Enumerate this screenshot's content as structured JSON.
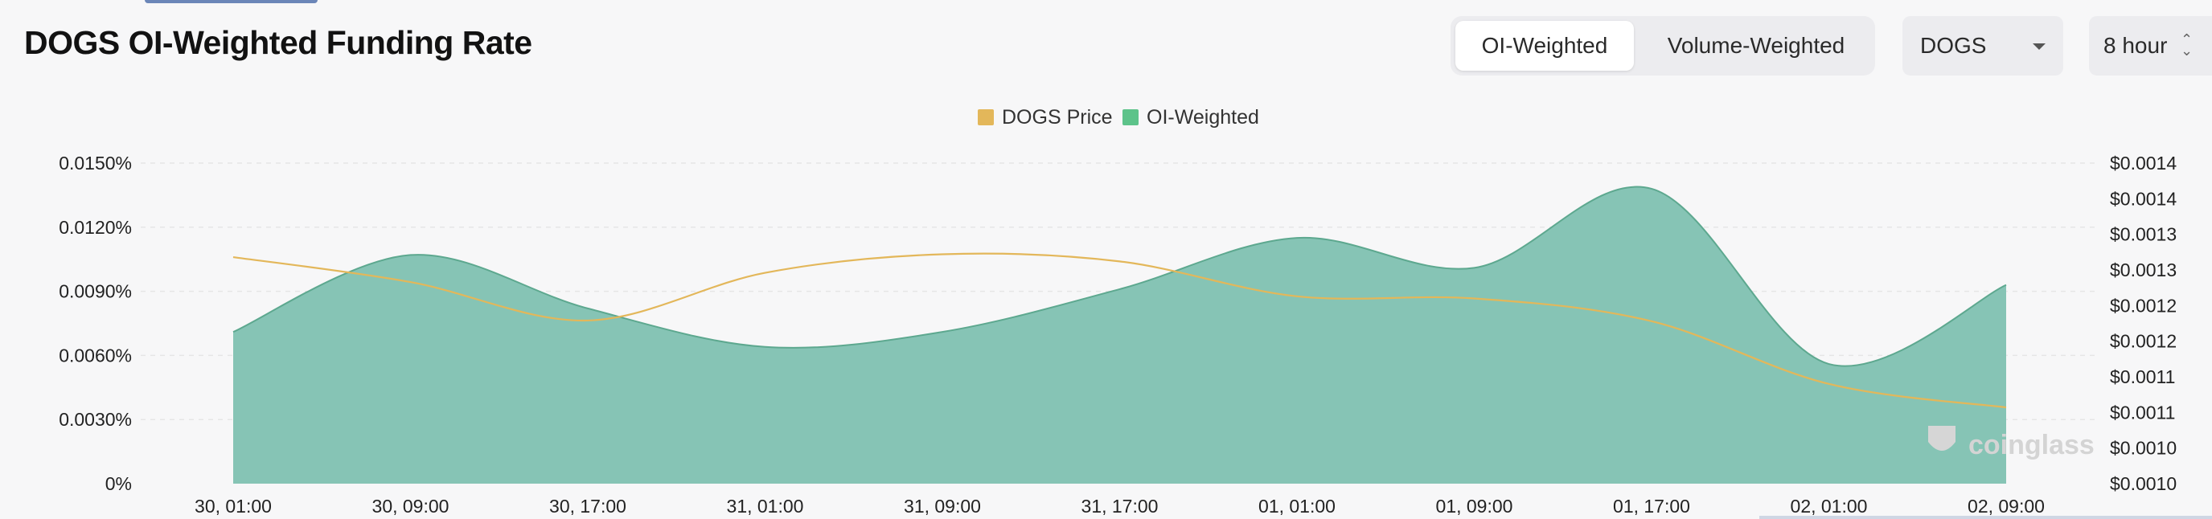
{
  "page": {
    "title": "DOGS OI-Weighted Funding Rate"
  },
  "controls": {
    "toggle": [
      {
        "label": "OI-Weighted",
        "active": true
      },
      {
        "label": "Volume-Weighted",
        "active": false
      }
    ],
    "symbol_select": {
      "value": "DOGS",
      "icon": "chevron-down-icon"
    },
    "interval_select": {
      "value": "8 hour",
      "icon": "up-down-arrows-icon"
    }
  },
  "watermark": "coinglass",
  "colors": {
    "price": "#e3b75a",
    "oi_legend": "#5dc38a",
    "oi_area": "#86c4b5",
    "oi_line": "#5da88f"
  },
  "chart_data": {
    "type": "area",
    "legend": [
      "DOGS Price",
      "OI-Weighted"
    ],
    "legend_position": "top-center",
    "grid": true,
    "x": [
      "30, 01:00",
      "30, 09:00",
      "30, 17:00",
      "31, 01:00",
      "31, 09:00",
      "31, 17:00",
      "01, 01:00",
      "01, 09:00",
      "01, 17:00",
      "02, 01:00",
      "02, 09:00"
    ],
    "x_tick_labels": [
      "30, 01:00",
      "30, 09:00",
      "30, 17:00",
      "31, 01:00",
      "31, 09:00",
      "31, 17:00",
      "01, 01:00",
      "01, 09:00",
      "01, 17:00",
      "02, 01:00",
      "02, 09:00"
    ],
    "y_left": {
      "ticks": [
        0,
        0.003,
        0.006,
        0.009,
        0.012,
        0.015
      ],
      "tick_labels": [
        "0%",
        "0.0030%",
        "0.0060%",
        "0.0090%",
        "0.0120%",
        "0.0150%"
      ],
      "ylim": [
        0,
        0.015
      ]
    },
    "y_right": {
      "ticks": [
        0.001,
        0.00105,
        0.0011,
        0.00115,
        0.0012,
        0.00125,
        0.0013,
        0.00135,
        0.0014,
        0.00145
      ],
      "tick_labels": [
        "$0.0010",
        "$0.0010",
        "$0.0011",
        "$0.0011",
        "$0.0012",
        "$0.0012",
        "$0.0013",
        "$0.0013",
        "$0.0014",
        "$0.0014"
      ],
      "ylim": [
        0.001,
        0.00145
      ]
    },
    "series": [
      {
        "name": "OI-Weighted",
        "axis": "left",
        "type": "area",
        "values": [
          0.0071,
          0.0107,
          0.0082,
          0.0064,
          0.0071,
          0.0091,
          0.0115,
          0.0101,
          0.0138,
          0.0056,
          0.0093
        ]
      },
      {
        "name": "DOGS Price",
        "axis": "right",
        "type": "line",
        "values": [
          0.001318,
          0.001283,
          0.001229,
          0.001296,
          0.001322,
          0.001312,
          0.001263,
          0.00126,
          0.001228,
          0.00114,
          0.001107
        ]
      }
    ]
  }
}
